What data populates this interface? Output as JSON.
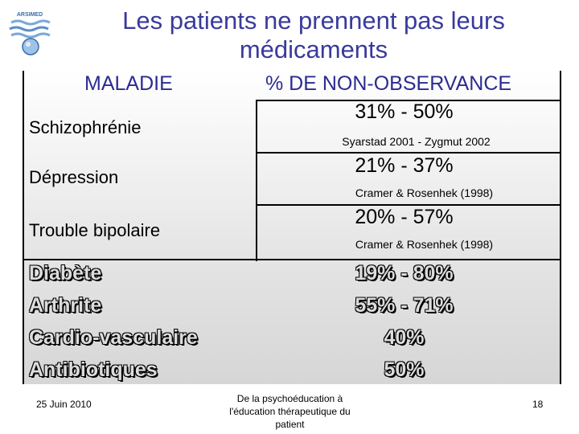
{
  "logo": {
    "text": "ARSIMED"
  },
  "title": {
    "line1": "Les patients ne prennent pas leurs",
    "line2": "médicaments"
  },
  "table": {
    "header_left": "MALADIE",
    "header_right": "% DE NON-OBSERVANCE",
    "rows": [
      {
        "disease": "Schizophrénie",
        "rate": "31% - 50%",
        "ref": "Syarstad 2001 - Zygmut 2002"
      },
      {
        "disease": "Dépression",
        "rate": "21% - 37%",
        "ref": "Cramer & Rosenhek (1998)"
      },
      {
        "disease": "Trouble bipolaire",
        "rate": "20% - 57%",
        "ref": "Cramer & Rosenhek (1998)"
      }
    ],
    "other_rows": [
      {
        "disease": "Diabète",
        "rate": "19% - 80%"
      },
      {
        "disease": "Arthrite",
        "rate": "55% - 71%"
      },
      {
        "disease": "Cardio-vasculaire",
        "rate": "40%"
      },
      {
        "disease": "Antibiotiques",
        "rate": "50%"
      }
    ]
  },
  "footer": {
    "date": "25 Juin 2010",
    "center": "De la psychoéducation à l'éducation thérapeutique du patient",
    "page": "18"
  }
}
